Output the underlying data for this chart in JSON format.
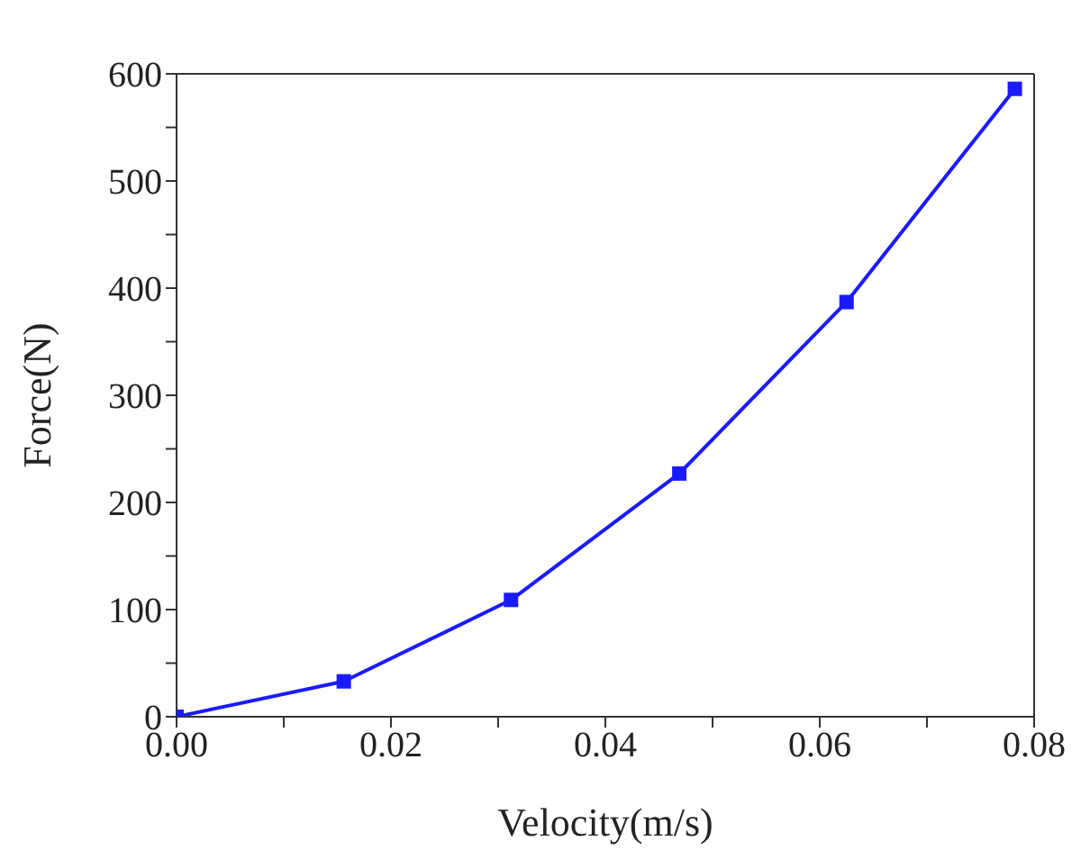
{
  "chart_data": {
    "type": "line",
    "xlabel": "Velocity(m/s)",
    "ylabel": "Force(N)",
    "x": [
      0,
      0.0156,
      0.0312,
      0.0469,
      0.0625,
      0.0782
    ],
    "series": [
      {
        "color": "#1a1aff",
        "values": [
          0,
          33,
          109,
          227,
          387,
          586
        ]
      }
    ],
    "xlim": [
      0,
      0.08
    ],
    "xticks": [
      {
        "value": 0,
        "label": "0.00"
      },
      {
        "value": 0.01,
        "label": null
      },
      {
        "value": 0.02,
        "label": "0.02"
      },
      {
        "value": 0.03,
        "label": null
      },
      {
        "value": 0.04,
        "label": "0.04"
      },
      {
        "value": 0.05,
        "label": null
      },
      {
        "value": 0.06,
        "label": "0.06"
      },
      {
        "value": 0.07,
        "label": null
      },
      {
        "value": 0.08,
        "label": "0.08"
      }
    ],
    "ylim": [
      0,
      600
    ],
    "yticks": [
      0,
      {
        "value": 50,
        "label": null
      },
      100,
      {
        "value": 150,
        "label": null
      },
      200,
      {
        "value": 250,
        "label": null
      },
      300,
      {
        "value": 350,
        "label": null
      },
      400,
      {
        "value": 450,
        "label": null
      },
      500,
      {
        "value": 550,
        "label": null
      },
      600
    ],
    "grid": false,
    "legend": false,
    "marker": "square",
    "line_style": "solid"
  }
}
